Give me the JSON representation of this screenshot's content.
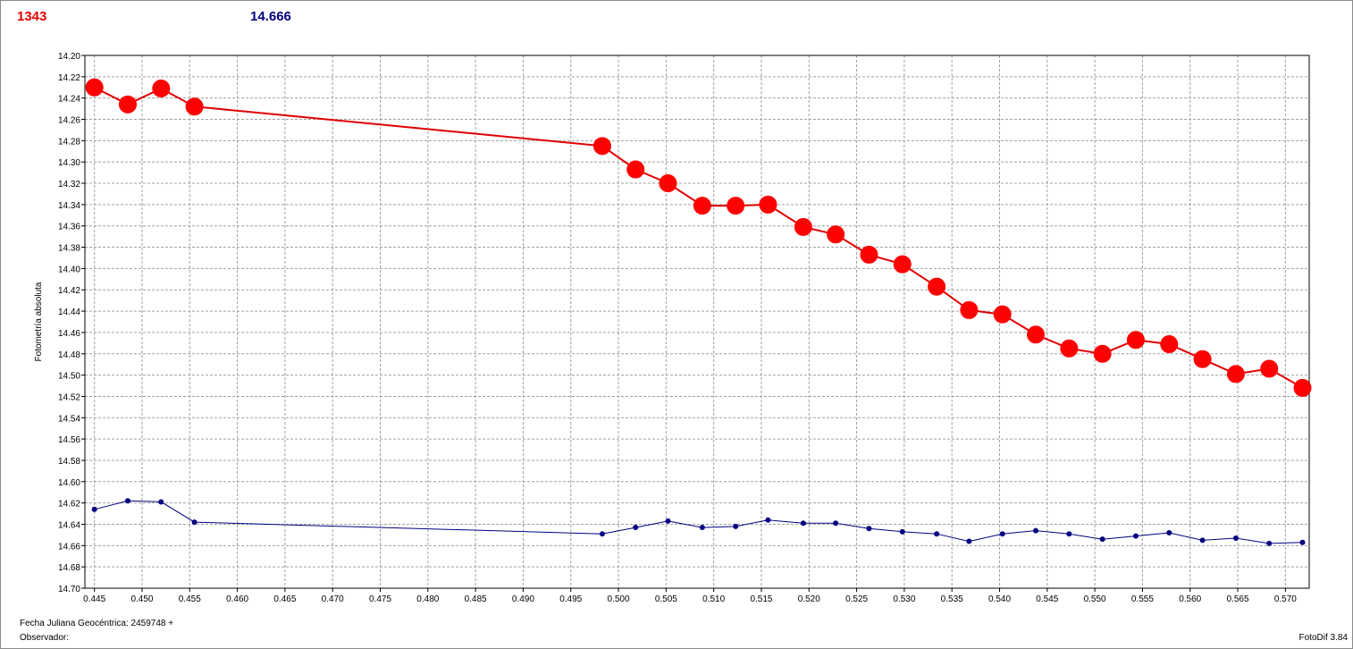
{
  "header": {
    "object_label": "1343",
    "reference_label": "14.666"
  },
  "footer": {
    "jd_label": "Fecha Juliana Geocéntrica: 2459748 +",
    "observer_label": "Observador:",
    "version_label": "FotoDif 3.84"
  },
  "colors": {
    "series_red": "#ff0000",
    "series_red_line": "#e00000",
    "series_blue": "#000080",
    "grid": "#a0a0a0"
  },
  "chart_data": {
    "type": "line",
    "title": "",
    "xlabel": "",
    "ylabel": "Fotometría absoluta",
    "xlim": [
      0.444,
      0.5725
    ],
    "ylim": [
      14.2,
      14.7
    ],
    "y_inverted": true,
    "grid": true,
    "x_ticks": [
      "0.445",
      "0.450",
      "0.455",
      "0.460",
      "0.465",
      "0.470",
      "0.475",
      "0.480",
      "0.485",
      "0.490",
      "0.495",
      "0.500",
      "0.505",
      "0.510",
      "0.515",
      "0.520",
      "0.525",
      "0.530",
      "0.535",
      "0.540",
      "0.545",
      "0.550",
      "0.555",
      "0.560",
      "0.565",
      "0.570"
    ],
    "y_ticks": [
      "14.20",
      "14.22",
      "14.24",
      "14.26",
      "14.28",
      "14.30",
      "14.32",
      "14.34",
      "14.36",
      "14.38",
      "14.40",
      "14.42",
      "14.44",
      "14.46",
      "14.48",
      "14.50",
      "14.52",
      "14.54",
      "14.56",
      "14.58",
      "14.60",
      "14.62",
      "14.64",
      "14.66",
      "14.68",
      "14.70"
    ],
    "series": [
      {
        "x": [
          0.445,
          0.4485,
          0.452,
          0.4555,
          0.4983,
          0.5018,
          0.5052,
          0.5088,
          0.5123,
          0.5157,
          0.5194,
          0.5228,
          0.5263,
          0.5298,
          0.5334,
          0.5368,
          0.5403,
          0.5438,
          0.5473,
          0.5508,
          0.5543,
          0.5578,
          0.5613,
          0.5648,
          0.5683,
          0.5718
        ],
        "y": [
          14.23,
          14.246,
          14.231,
          14.248,
          14.285,
          14.307,
          14.32,
          14.341,
          14.341,
          14.34,
          14.361,
          14.368,
          14.387,
          14.396,
          14.417,
          14.439,
          14.443,
          14.462,
          14.475,
          14.48,
          14.467,
          14.471,
          14.485,
          14.499,
          14.494,
          14.512
        ]
      },
      {
        "x": [
          0.445,
          0.4485,
          0.452,
          0.4555,
          0.4983,
          0.5018,
          0.5052,
          0.5088,
          0.5123,
          0.5157,
          0.5194,
          0.5228,
          0.5263,
          0.5298,
          0.5334,
          0.5368,
          0.5403,
          0.5438,
          0.5473,
          0.5508,
          0.5543,
          0.5578,
          0.5613,
          0.5648,
          0.5683,
          0.5718
        ],
        "y": [
          14.626,
          14.618,
          14.619,
          14.638,
          14.649,
          14.643,
          14.637,
          14.643,
          14.642,
          14.636,
          14.639,
          14.639,
          14.644,
          14.647,
          14.649,
          14.656,
          14.649,
          14.646,
          14.649,
          14.654,
          14.651,
          14.648,
          14.655,
          14.653,
          14.658,
          14.657
        ]
      }
    ]
  }
}
